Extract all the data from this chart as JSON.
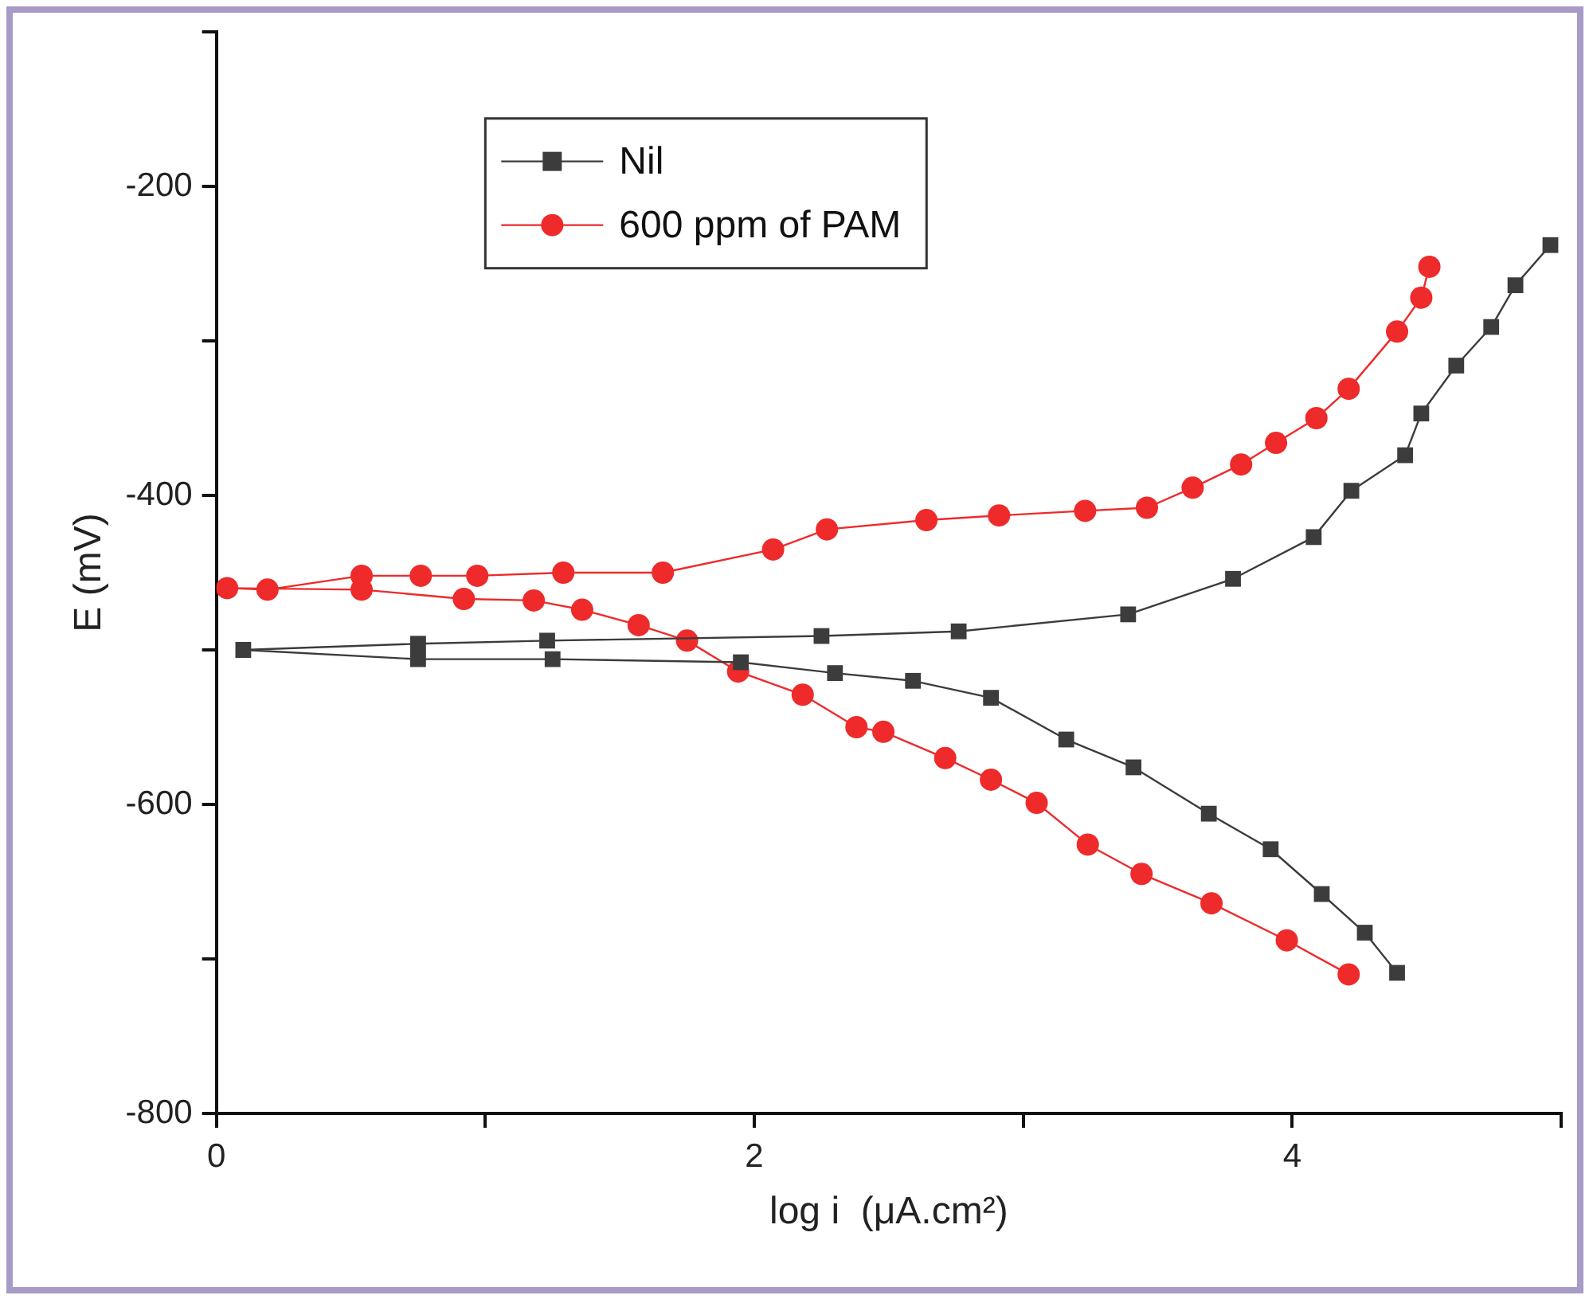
{
  "chart_data": {
    "type": "line",
    "xlabel": "log i  (μA.cm²)",
    "ylabel": "E (mV)",
    "xlim": [
      0,
      5
    ],
    "xticks": [
      0,
      {
        "value": 1,
        "label": null
      },
      2,
      {
        "value": 3,
        "label": null
      },
      4,
      {
        "value": 5,
        "label": null
      }
    ],
    "ylim": [
      -800,
      -100
    ],
    "yticks": [
      -800,
      {
        "value": -700,
        "label": null
      },
      -600,
      {
        "value": -500,
        "label": null
      },
      -400,
      {
        "value": -300,
        "label": null
      },
      -200,
      {
        "value": -100,
        "label": null
      }
    ],
    "grid": false,
    "legend": "top left",
    "line_style": "solid",
    "series": [
      {
        "name": "Nil",
        "color": "#3c3c3c",
        "marker": "square",
        "x": [
          4.96,
          4.83,
          4.74,
          4.61,
          4.48,
          4.42,
          4.22,
          4.08,
          3.78,
          3.39,
          2.76,
          2.25,
          1.23,
          0.75,
          0.1,
          0.75,
          1.25,
          1.95,
          2.3,
          2.59,
          2.88,
          3.16,
          3.41,
          3.69,
          3.92,
          4.11,
          4.27,
          4.39
        ],
        "values": [
          -238,
          -264,
          -291,
          -316,
          -347,
          -374,
          -397,
          -427,
          -454,
          -477,
          -488,
          -491,
          -494,
          -496,
          -500,
          -506,
          -506,
          -508,
          -515,
          -520,
          -531,
          -558,
          -576,
          -606,
          -629,
          -658,
          -683,
          -709
        ]
      },
      {
        "name": "600 ppm of PAM",
        "color": "#ee2a2a",
        "marker": "circle",
        "x": [
          4.51,
          4.48,
          4.39,
          4.21,
          4.09,
          3.94,
          3.81,
          3.63,
          3.46,
          3.23,
          2.91,
          2.64,
          2.27,
          2.07,
          1.66,
          1.29,
          0.97,
          0.76,
          0.54,
          0.19,
          0.04,
          0.54,
          0.92,
          1.18,
          1.36,
          1.57,
          1.75,
          1.94,
          2.18,
          2.38,
          2.48,
          2.71,
          2.88,
          3.05,
          3.24,
          3.44,
          3.7,
          3.98,
          4.21
        ],
        "values": [
          -252,
          -272,
          -294,
          -331,
          -350,
          -366,
          -380,
          -395,
          -408,
          -410,
          -413,
          -416,
          -422,
          -435,
          -450,
          -450,
          -452,
          -452,
          -452,
          -461,
          -460,
          -461,
          -467,
          -468,
          -474,
          -484,
          -494,
          -514,
          -529,
          -550,
          -553,
          -570,
          -584,
          -599,
          -626,
          -645,
          -664,
          -688,
          -710
        ]
      }
    ]
  }
}
